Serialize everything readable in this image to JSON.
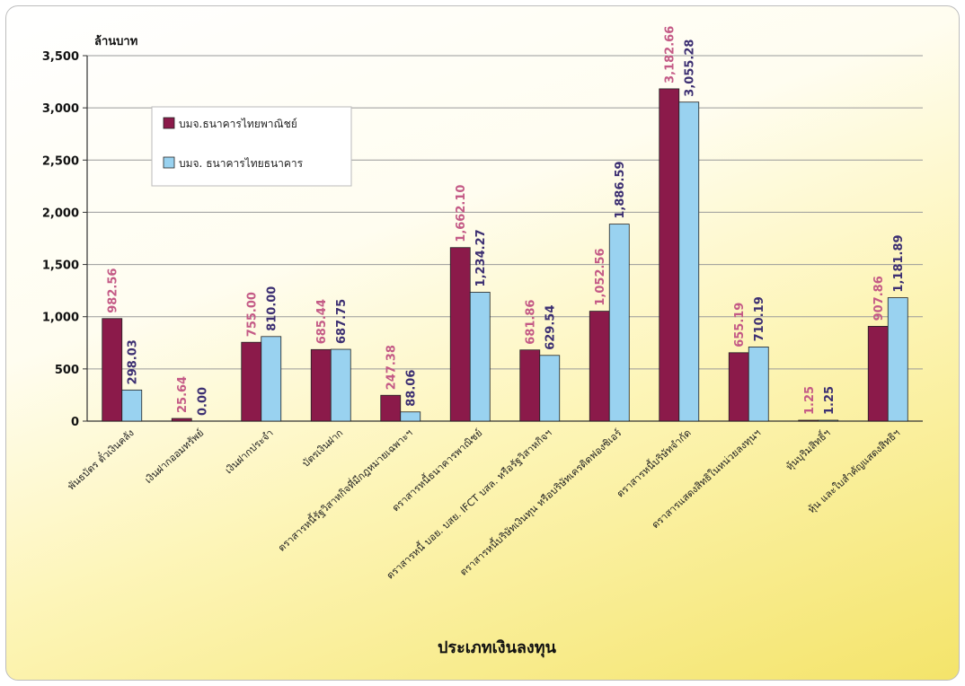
{
  "chart_data": {
    "type": "bar",
    "ylabel": "ล้านบาท",
    "xlabel": "ประเภทเงินลงทุน",
    "ylim": [
      0,
      3500
    ],
    "yticks": [
      "0",
      "500",
      "1,000",
      "1,500",
      "2,000",
      "2,500",
      "3,000",
      "3,500"
    ],
    "grid": true,
    "legend_position": "upper-left",
    "categories": [
      "พันธบัตร ตั๋วเงินคลัง",
      "เงินฝากออมทรัพย์",
      "เงินฝากประจำ",
      "บัตรเงินฝาก",
      "ตราสารหนี้รัฐวิสาหกิจที่มีกฎหมายเฉพาะฯ",
      "ตราสารหนี้ธนาคารพาณิชย์",
      "ตราสารหนี้ บอย. บสย. IFCT บสล. หรือรัฐวิสาหกิจฯ",
      "ตราสารหนี้บริษัทเงินทุน หรือบริษัทเครดิตฟองซิเอร์",
      "ตราสารหนี้บริษัทจำกัด",
      "ตราสารแสดงสิทธิในหน่วยลงทุนฯ",
      "หุ้นบุริมสิทธิ์ฯ",
      "หุ้น และใบสำคัญแสดงสิทธิฯ"
    ],
    "series": [
      {
        "name": "บมจ.ธนาคารไทยพาณิชย์",
        "color": "#8b1a4a",
        "label_color": "#c45a86",
        "values": [
          982.56,
          25.64,
          755.0,
          685.44,
          247.38,
          1662.1,
          681.86,
          1052.56,
          3182.66,
          655.19,
          1.25,
          907.86
        ],
        "labels": [
          "982.56",
          "25.64",
          "755.00",
          "685.44",
          "247.38",
          "1,662.10",
          "681.86",
          "1,052.56",
          "3,182.66",
          "655.19",
          "1.25",
          "907.86"
        ]
      },
      {
        "name": "บมจ. ธนาคารไทยธนาคาร",
        "color": "#99d2f0",
        "label_color": "#3c2f72",
        "values": [
          298.03,
          0.0,
          810.0,
          687.75,
          88.06,
          1234.27,
          629.54,
          1886.59,
          3055.28,
          710.19,
          1.25,
          1181.89
        ],
        "labels": [
          "298.03",
          "0.00",
          "810.00",
          "687.75",
          "88.06",
          "1,234.27",
          "629.54",
          "1,886.59",
          "3,055.28",
          "710.19",
          "1.25",
          "1,181.89"
        ]
      }
    ]
  }
}
